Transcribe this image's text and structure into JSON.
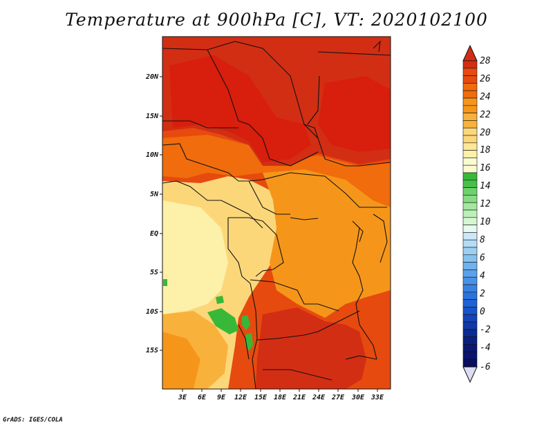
{
  "title": "Temperature at 900hPa [C], VT: 2020102100",
  "credit": "GrADS: IGES/COLA",
  "map": {
    "lat_labels": [
      "20N",
      "15N",
      "10N",
      "5N",
      "EQ",
      "5S",
      "10S",
      "15S"
    ],
    "lon_labels": [
      "3E",
      "6E",
      "9E",
      "12E",
      "15E",
      "18E",
      "21E",
      "24E",
      "27E",
      "30E",
      "33E"
    ]
  },
  "colorbar": {
    "levels": [
      "28",
      "26",
      "24",
      "22",
      "20",
      "18",
      "16",
      "14",
      "12",
      "10",
      "8",
      "6",
      "4",
      "2",
      "0",
      "-2",
      "-4",
      "-6"
    ],
    "colors": [
      "#d22e14",
      "#e64a0f",
      "#f06c0c",
      "#f5961a",
      "#f8b23c",
      "#fbd77a",
      "#fdf0a8",
      "#fbfbd2",
      "#38b838",
      "#6cd26c",
      "#a4e8a0",
      "#d4f6d0",
      "#b4dcf6",
      "#86c2f0",
      "#5aa2ea",
      "#3a82e2",
      "#1f62d6",
      "#1444b8",
      "#0c2a90",
      "#0a1470",
      "#dcdcf4"
    ]
  },
  "legend_colors": {
    "hot": "#d81e0c",
    "warm": "#f5961a",
    "mild": "#fbd77a",
    "cool": "#fdf0a8",
    "green": "#38b838"
  }
}
